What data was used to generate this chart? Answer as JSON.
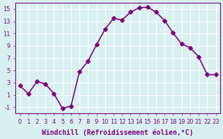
{
  "x": [
    0,
    1,
    2,
    3,
    4,
    5,
    6,
    7,
    8,
    9,
    10,
    11,
    12,
    13,
    14,
    15,
    16,
    17,
    18,
    19,
    20,
    21,
    22,
    23
  ],
  "y": [
    2.5,
    1.2,
    3.2,
    2.8,
    1.2,
    -1.2,
    -0.8,
    4.8,
    6.5,
    9.2,
    11.7,
    13.5,
    13.2,
    14.5,
    15.2,
    15.3,
    14.5,
    13.1,
    11.1,
    9.3,
    8.7,
    7.2,
    4.3,
    4.3
  ],
  "line_color": "#800080",
  "marker": "D",
  "marker_size": 3,
  "bg_color": "#d8f0f0",
  "grid_color": "#ffffff",
  "xlabel": "Windchill (Refroidissement éolien,°C)",
  "xlabel_fontsize": 7,
  "xtick_labels": [
    "0",
    "1",
    "2",
    "3",
    "4",
    "5",
    "6",
    "7",
    "8",
    "9",
    "10",
    "11",
    "12",
    "13",
    "14",
    "15",
    "16",
    "17",
    "18",
    "19",
    "20",
    "21",
    "22",
    "23"
  ],
  "ytick_values": [
    -1,
    1,
    3,
    5,
    7,
    9,
    11,
    13,
    15
  ],
  "ylim": [
    -2,
    16
  ],
  "xlim": [
    -0.5,
    23.5
  ],
  "tick_color": "#800080",
  "tick_fontsize": 6,
  "line_width": 1.2
}
